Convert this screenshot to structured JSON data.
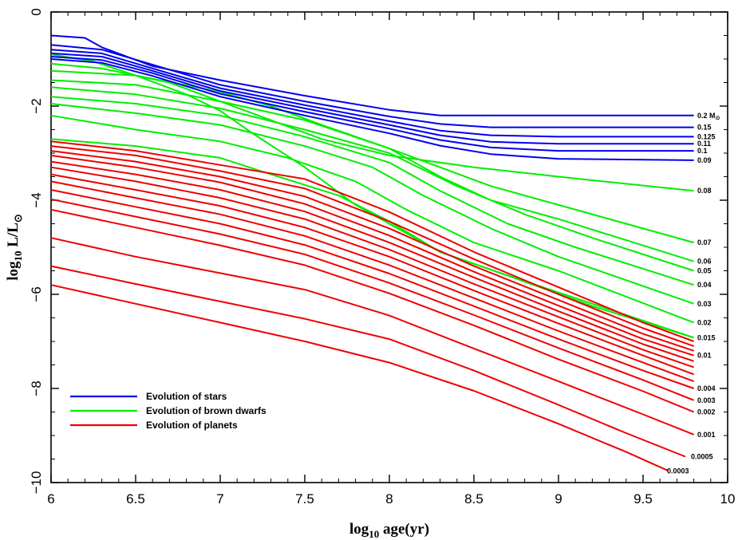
{
  "chart_data": {
    "type": "line",
    "xlabel_main": "log",
    "xlabel_sub": "10",
    "xlabel_rest": " age(yr)",
    "ylabel_main": "log",
    "ylabel_sub": "10",
    "ylabel_rest": " L/L",
    "ylabel_sun": "⊙",
    "xlim": [
      6,
      10
    ],
    "ylim": [
      -10,
      0
    ],
    "x_ticks": [
      6,
      6.5,
      7,
      7.5,
      8,
      8.5,
      9,
      9.5,
      10
    ],
    "x_tick_labels": [
      "6",
      "6.5",
      "7",
      "7.5",
      "8",
      "8.5",
      "9",
      "9.5",
      "10"
    ],
    "y_ticks": [
      0,
      -2,
      -4,
      -6,
      -8,
      -10
    ],
    "y_tick_labels": [
      "0",
      "−2",
      "−4",
      "−6",
      "−8",
      "−10"
    ],
    "colors": {
      "stars": "#0000ee",
      "brown_dwarfs": "#00ee00",
      "planets": "#ee0000"
    },
    "legend": [
      {
        "label": "Evolution of stars",
        "group": "stars"
      },
      {
        "label": "Evolution of brown dwarfs",
        "group": "brown_dwarfs"
      },
      {
        "label": "Evolution of planets",
        "group": "planets"
      }
    ],
    "mass_labels": [
      {
        "text": "0.2 M",
        "sun": "⊙",
        "y": -2.2
      },
      {
        "text": "0.15",
        "y": -2.45
      },
      {
        "text": "0.125",
        "y": -2.65
      },
      {
        "text": "0.11",
        "y": -2.8
      },
      {
        "text": "0.1",
        "y": -2.95
      },
      {
        "text": "0.09",
        "y": -3.15
      },
      {
        "text": "0.08",
        "y": -3.8
      },
      {
        "text": "0.07",
        "y": -4.9
      },
      {
        "text": "0.06",
        "y": -5.3
      },
      {
        "text": "0.05",
        "y": -5.5
      },
      {
        "text": "0.04",
        "y": -5.8
      },
      {
        "text": "0.03",
        "y": -6.2
      },
      {
        "text": "0.02",
        "y": -6.6
      },
      {
        "text": "0.015",
        "y": -6.92
      },
      {
        "text": "0.01",
        "y": -7.3
      },
      {
        "text": "0.004",
        "y": -8.0
      },
      {
        "text": "0.003",
        "y": -8.25
      },
      {
        "text": "0.002",
        "y": -8.5
      },
      {
        "text": "0.001",
        "y": -8.98
      },
      {
        "text": "0.0005",
        "y": -9.45
      },
      {
        "text": "0.0003",
        "y": -9.75
      }
    ],
    "series": [
      {
        "group": "stars",
        "x": [
          6.0,
          6.2,
          6.3,
          6.6,
          7.0,
          7.5,
          8.0,
          8.3,
          8.6,
          9.0,
          9.8
        ],
        "y": [
          -0.5,
          -0.55,
          -0.75,
          -1.15,
          -1.45,
          -1.78,
          -2.08,
          -2.2,
          -2.2,
          -2.2,
          -2.2
        ]
      },
      {
        "group": "stars",
        "x": [
          6.0,
          6.3,
          6.6,
          7.0,
          7.5,
          8.0,
          8.3,
          8.6,
          9.0,
          9.8
        ],
        "y": [
          -0.7,
          -0.8,
          -1.12,
          -1.55,
          -1.9,
          -2.22,
          -2.38,
          -2.45,
          -2.45,
          -2.45
        ]
      },
      {
        "group": "stars",
        "x": [
          6.0,
          6.3,
          6.6,
          7.0,
          7.5,
          8.0,
          8.3,
          8.6,
          9.0,
          9.8
        ],
        "y": [
          -0.8,
          -0.88,
          -1.2,
          -1.62,
          -1.98,
          -2.32,
          -2.52,
          -2.62,
          -2.65,
          -2.65
        ]
      },
      {
        "group": "stars",
        "x": [
          6.0,
          6.3,
          6.6,
          7.0,
          7.5,
          8.0,
          8.3,
          8.6,
          9.0,
          9.8
        ],
        "y": [
          -0.88,
          -0.95,
          -1.25,
          -1.68,
          -2.05,
          -2.4,
          -2.62,
          -2.76,
          -2.8,
          -2.8
        ]
      },
      {
        "group": "stars",
        "x": [
          6.0,
          6.3,
          6.6,
          7.0,
          7.5,
          8.0,
          8.3,
          8.6,
          9.0,
          9.8
        ],
        "y": [
          -0.95,
          -1.02,
          -1.3,
          -1.74,
          -2.12,
          -2.48,
          -2.72,
          -2.88,
          -2.95,
          -2.95
        ]
      },
      {
        "group": "stars",
        "x": [
          6.0,
          6.3,
          6.6,
          7.0,
          7.5,
          8.0,
          8.3,
          8.6,
          9.0,
          9.8
        ],
        "y": [
          -1.0,
          -1.08,
          -1.36,
          -1.8,
          -2.2,
          -2.58,
          -2.84,
          -3.02,
          -3.12,
          -3.15
        ]
      },
      {
        "group": "brown_dwarfs",
        "x": [
          6.0,
          6.3,
          6.7,
          7.0,
          7.3,
          7.6,
          8.0,
          8.5,
          9.0,
          9.4,
          9.8
        ],
        "y": [
          -1.1,
          -1.2,
          -1.5,
          -1.9,
          -2.3,
          -2.7,
          -3.05,
          -3.3,
          -3.5,
          -3.65,
          -3.8
        ]
      },
      {
        "group": "brown_dwarfs",
        "x": [
          6.0,
          6.5,
          7.0,
          7.3,
          7.6,
          8.0,
          8.3,
          8.6,
          9.0,
          9.4,
          9.8
        ],
        "y": [
          -1.25,
          -1.35,
          -1.7,
          -2.0,
          -2.4,
          -2.9,
          -3.3,
          -3.7,
          -4.1,
          -4.5,
          -4.9
        ]
      },
      {
        "group": "brown_dwarfs",
        "x": [
          6.0,
          6.5,
          7.0,
          7.5,
          8.0,
          8.3,
          8.6,
          9.0,
          9.4,
          9.8
        ],
        "y": [
          -1.45,
          -1.55,
          -1.9,
          -2.3,
          -2.9,
          -3.5,
          -4.0,
          -4.4,
          -4.85,
          -5.3
        ]
      },
      {
        "group": "brown_dwarfs",
        "x": [
          6.0,
          6.5,
          7.0,
          7.5,
          8.0,
          8.4,
          8.8,
          9.2,
          9.8
        ],
        "y": [
          -1.6,
          -1.75,
          -2.05,
          -2.5,
          -3.0,
          -3.7,
          -4.3,
          -4.8,
          -5.5
        ]
      },
      {
        "group": "brown_dwarfs",
        "x": [
          6.0,
          6.5,
          7.0,
          7.5,
          8.0,
          8.3,
          8.7,
          9.1,
          9.8
        ],
        "y": [
          -1.8,
          -1.95,
          -2.2,
          -2.65,
          -3.2,
          -3.8,
          -4.5,
          -5.0,
          -5.8
        ]
      },
      {
        "group": "brown_dwarfs",
        "x": [
          6.0,
          6.5,
          7.0,
          7.5,
          7.9,
          8.2,
          8.6,
          9.0,
          9.8
        ],
        "y": [
          -1.95,
          -2.15,
          -2.4,
          -2.85,
          -3.3,
          -3.9,
          -4.6,
          -5.2,
          -6.2
        ]
      },
      {
        "group": "brown_dwarfs",
        "x": [
          6.0,
          6.5,
          7.0,
          7.4,
          7.8,
          8.1,
          8.5,
          9.0,
          9.8
        ],
        "y": [
          -2.2,
          -2.5,
          -2.75,
          -3.1,
          -3.6,
          -4.2,
          -4.9,
          -5.5,
          -6.6
        ]
      },
      {
        "group": "brown_dwarfs",
        "x": [
          6.0,
          6.5,
          7.0,
          7.3,
          7.7,
          8.0,
          8.3,
          8.7,
          9.2,
          9.8
        ],
        "y": [
          -2.7,
          -2.85,
          -3.1,
          -3.45,
          -3.9,
          -4.45,
          -5.1,
          -5.6,
          -6.25,
          -6.92
        ]
      },
      {
        "group": "brown_dwarfs",
        "x": [
          6.0,
          6.25,
          6.5,
          6.8,
          7.0,
          7.2,
          7.5,
          7.8,
          8.0,
          8.3,
          8.7,
          9.2,
          9.8
        ],
        "y": [
          -0.9,
          -1.05,
          -1.35,
          -1.75,
          -2.1,
          -2.6,
          -3.3,
          -4.1,
          -4.5,
          -5.1,
          -5.6,
          -6.2,
          -6.92
        ]
      },
      {
        "group": "planets",
        "x": [
          6.0,
          6.5,
          7.0,
          7.5,
          8.0,
          8.5,
          9.0,
          9.5,
          9.8
        ],
        "y": [
          -2.75,
          -2.95,
          -3.25,
          -3.55,
          -4.25,
          -5.1,
          -5.85,
          -6.6,
          -7.0
        ]
      },
      {
        "group": "planets",
        "x": [
          6.0,
          6.5,
          7.0,
          7.5,
          8.0,
          8.5,
          9.0,
          9.5,
          9.8
        ],
        "y": [
          -2.85,
          -3.05,
          -3.38,
          -3.75,
          -4.45,
          -5.25,
          -6.0,
          -6.72,
          -7.1
        ]
      },
      {
        "group": "planets",
        "x": [
          6.0,
          6.5,
          7.0,
          7.5,
          8.0,
          8.5,
          9.0,
          9.5,
          9.8
        ],
        "y": [
          -2.95,
          -3.18,
          -3.5,
          -3.92,
          -4.6,
          -5.4,
          -6.12,
          -6.84,
          -7.2
        ]
      },
      {
        "group": "planets",
        "x": [
          6.0,
          6.5,
          7.0,
          7.5,
          8.0,
          8.5,
          9.0,
          9.5,
          9.8
        ],
        "y": [
          -3.05,
          -3.3,
          -3.62,
          -4.08,
          -4.75,
          -5.52,
          -6.24,
          -6.95,
          -7.3
        ]
      },
      {
        "group": "planets",
        "x": [
          6.0,
          6.5,
          7.0,
          7.5,
          8.0,
          8.5,
          9.0,
          9.5,
          9.8
        ],
        "y": [
          -3.18,
          -3.45,
          -3.78,
          -4.24,
          -4.9,
          -5.64,
          -6.36,
          -7.06,
          -7.42
        ]
      },
      {
        "group": "planets",
        "x": [
          6.0,
          6.5,
          7.0,
          7.5,
          8.0,
          8.5,
          9.0,
          9.5,
          9.8
        ],
        "y": [
          -3.3,
          -3.6,
          -3.95,
          -4.4,
          -5.05,
          -5.78,
          -6.48,
          -7.18,
          -7.55
        ]
      },
      {
        "group": "planets",
        "x": [
          6.0,
          6.5,
          7.0,
          7.5,
          8.0,
          8.5,
          9.0,
          9.5,
          9.8
        ],
        "y": [
          -3.45,
          -3.78,
          -4.12,
          -4.58,
          -5.2,
          -5.92,
          -6.62,
          -7.3,
          -7.7
        ]
      },
      {
        "group": "planets",
        "x": [
          6.0,
          6.5,
          7.0,
          7.5,
          8.0,
          8.5,
          9.0,
          9.5,
          9.8
        ],
        "y": [
          -3.6,
          -3.95,
          -4.3,
          -4.76,
          -5.38,
          -6.08,
          -6.78,
          -7.45,
          -7.85
        ]
      },
      {
        "group": "planets",
        "x": [
          6.0,
          6.5,
          7.0,
          7.5,
          8.0,
          8.5,
          9.0,
          9.5,
          9.8
        ],
        "y": [
          -3.78,
          -4.14,
          -4.5,
          -4.95,
          -5.56,
          -6.25,
          -6.95,
          -7.62,
          -8.0
        ]
      },
      {
        "group": "planets",
        "x": [
          6.0,
          6.5,
          7.0,
          7.5,
          8.0,
          8.5,
          9.0,
          9.5,
          9.8
        ],
        "y": [
          -3.98,
          -4.35,
          -4.72,
          -5.15,
          -5.76,
          -6.44,
          -7.14,
          -7.82,
          -8.25
        ]
      },
      {
        "group": "planets",
        "x": [
          6.0,
          6.5,
          7.0,
          7.5,
          8.0,
          8.5,
          9.0,
          9.5,
          9.8
        ],
        "y": [
          -4.2,
          -4.58,
          -4.96,
          -5.38,
          -5.98,
          -6.66,
          -7.38,
          -8.06,
          -8.5
        ]
      },
      {
        "group": "planets",
        "x": [
          6.0,
          6.5,
          7.0,
          7.5,
          8.0,
          8.5,
          9.0,
          9.5,
          9.8
        ],
        "y": [
          -4.8,
          -5.2,
          -5.55,
          -5.9,
          -6.45,
          -7.15,
          -7.85,
          -8.55,
          -8.98
        ]
      },
      {
        "group": "planets",
        "x": [
          6.0,
          6.5,
          7.0,
          7.5,
          8.0,
          8.5,
          9.0,
          9.4,
          9.75
        ],
        "y": [
          -5.4,
          -5.78,
          -6.15,
          -6.52,
          -6.95,
          -7.62,
          -8.35,
          -8.95,
          -9.45
        ]
      },
      {
        "group": "planets",
        "x": [
          6.0,
          6.5,
          7.0,
          7.5,
          8.0,
          8.5,
          9.0,
          9.4,
          9.65
        ],
        "y": [
          -5.8,
          -6.2,
          -6.6,
          -7.0,
          -7.45,
          -8.05,
          -8.75,
          -9.35,
          -9.75
        ]
      }
    ]
  }
}
